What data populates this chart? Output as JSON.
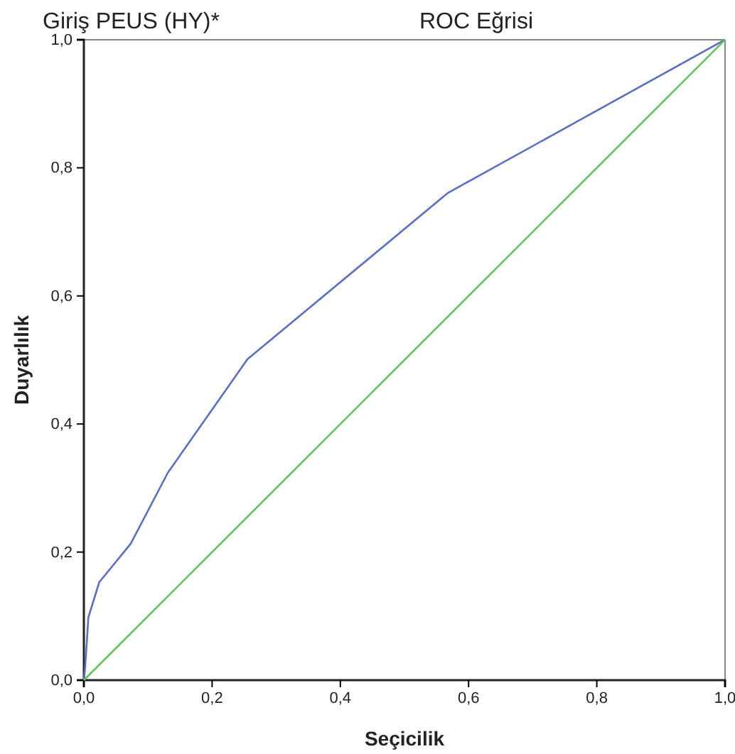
{
  "chart_data": {
    "type": "line",
    "title": "ROC Eğrisi",
    "annotations": [
      "Giriş PEUS (HY)*"
    ],
    "xlabel": "Seçicilik",
    "ylabel": "Duyarlılık",
    "xlim": [
      0,
      1
    ],
    "ylim": [
      0,
      1
    ],
    "xticks": [
      {
        "value": 0,
        "label": "0,0"
      },
      {
        "value": 0.2,
        "label": "0,2"
      },
      {
        "value": 0.4,
        "label": "0,4"
      },
      {
        "value": 0.6,
        "label": "0,6"
      },
      {
        "value": 0.8,
        "label": "0,8"
      },
      {
        "value": 1,
        "label": "1,0"
      }
    ],
    "yticks": [
      {
        "value": 0,
        "label": "0,0"
      },
      {
        "value": 0.2,
        "label": "0,2"
      },
      {
        "value": 0.4,
        "label": "0,4"
      },
      {
        "value": 0.6,
        "label": "0,6"
      },
      {
        "value": 0.8,
        "label": "0,8"
      },
      {
        "value": 1,
        "label": "1,0"
      }
    ],
    "grid": false,
    "marker": "none",
    "line_style": "solid",
    "series": [
      {
        "color": "#5a6fc4",
        "x": [
          0,
          0.002,
          0.007,
          0.024,
          0.073,
          0.131,
          0.255,
          0.568,
          1
        ],
        "values": [
          0,
          0.02,
          0.098,
          0.153,
          0.213,
          0.324,
          0.501,
          0.761,
          1
        ]
      },
      {
        "color": "#5cc45f",
        "x": [
          0,
          1
        ],
        "values": [
          0,
          1
        ]
      }
    ]
  }
}
